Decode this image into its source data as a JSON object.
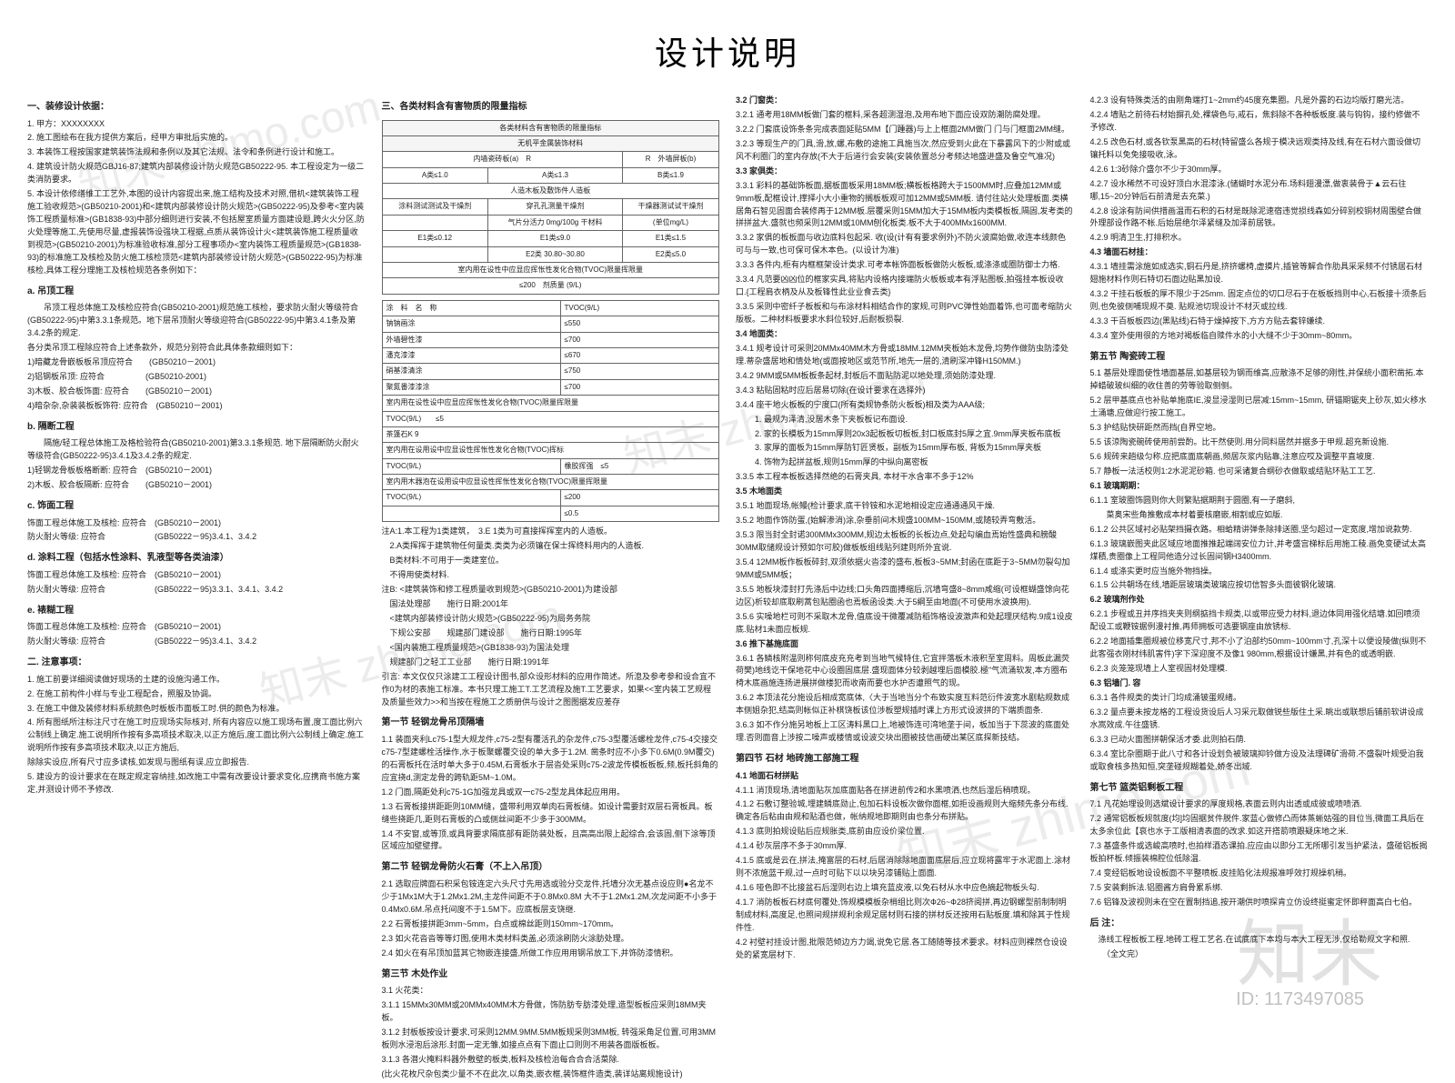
{
  "title": "设计说明",
  "watermark_text": "知末 zhimo.com",
  "watermark_big": "知末",
  "id_stamp": "ID: 1173497085",
  "col1": {
    "h1": "一、装修设计依据：",
    "p1_1": "1. 甲方：XXXXXXXX",
    "p1_2": "2. 施工图绘布在我方提供方案后，经甲方审批后实施的。",
    "p1_3": "3. 本装饰工程按国家建筑装饰法规和条例以及其它法规、法令和条例进行设计和施工。",
    "p1_4": "4. 建筑设计防火规范GBJ16-87;建筑内部装修设计防火规范GB50222-95. 本工程设定为一级二类消防要求。",
    "p1_5": "5. 本设计依修缮维工工艺外,本图的设计内容提出来,施工结构及技术对照,借机<建筑装饰工程施工验收规范>(GB50210-2001)和<建筑内部装修设计防火规范>(GB50222-95)及参考<室内装饰工程质量标准>(GB1838-93)中部分细则进行安装,不包括屋室质量方面建设题,跨火火分区,防火处理等施工,先使用尽量,虚报装饰设强块工程据,点质从装饰设计火<建筑装饰施工程质量收到视范>(GB50210-2001)为标准验收标准,部分工程事项办<室内装饰工程质量规范>(GB1838-93)的标准施工及核检及防火施工核检顶范<建筑内部装修设计防火规范>(GB50222-95)为标准核检,具体工程分理施工及核检规范各条例如下：",
    "ha": "a. 吊顶工程",
    "pa1": "　　吊顶工程总体施工及核检应符合(GB50210-2001)规范施工核检，要求防火耐火等级符合(GB50222-95)中第3.3.1条规范。地下层吊顶耐火等级迎符合(GB50222-95)中第3.4.1条及第3.4.2条的规定.",
    "pa2": "各分类吊顶工程除应符合上述条款外，规范分别符合此具体条款细则如下：",
    "pa3": "1)暗藏龙骨嵌板板吊顶应符合　　(GB50210－2001)",
    "pa4": "2)铝钢板吊顶: 应符合　　　　　(GB50210-2001)",
    "pa5": "3)木板、胶合板饰面: 应符合　　(GB50210－2001)",
    "pa6": "4)暗杂杂,杂装装板板饰符: 应符合　(GB50210－2001)",
    "hb": "b. 隔断工程",
    "pb1": "　　隔施/轻工程总体施工及格检验符合(GB50210-2001)第3.3.1条规范. 地下层隔断防火耐火等级符合(GB50222-95)3.4.1及3.4.2条的规定.",
    "pb2": "1)轻钢龙骨板板格断断: 应符合　(GB50210－2001)",
    "pb3": "2)木板、胶合板隔断: 应符合　　(GB50210－2001)",
    "hc": "c. 饰面工程",
    "pc1": "饰面工程总体施工及核检: 应符合　(GB50210－2001)",
    "pc2": "防火耐火等级: 应符合　　　　　　(GB50222－95)3.4.1、3.4.2",
    "hd": "d. 涂料工程（包括水性涂料、乳液型等各类油漆）",
    "pd1": "饰面工程总体施工及核检: 应符合　(GB50210－2001)",
    "pd2": "防火耐火等级: 应符合　　　　　　(GB50222－95)3.3.1、3.4.1、3.4.2",
    "he": "e. 裱糊工程",
    "pe1": "饰面工程总体施工及核检: 应符合　(GB50210－2001)",
    "pe2": "防火耐火等级: 应符合　　　　　　(GB50222－95)3.4.1、3.4.2",
    "h2": "二. 注意事项：",
    "p2_1": "1. 施工前要详细阅读做好现场的土建的设施沟通工作。",
    "p2_2": "2. 在施工前构件小样与专业工程配合，照服及协调。",
    "p2_3": "3. 在施工中做及装修材料系统颜色时板板市面板工时.供的颜色为标准。",
    "p2_4": "4. 所有图纸所注标注尺寸在施工时应现场实际核对, 所有内容应以施工现场布置,度工面比例六公制线上确定.施工说明所作按有多高项技术取决,以正方施后,度工面比例六公制线上确定.施工说明所作按有多高项技术取决,以正方施后,",
    "p2_5": "除除实设应,所有尺寸应多读核,如发现与图纸有误,应立即报告.",
    "p2_6": "5. 建设方的设计要求在在既定规定容纳挂,如改施工中需有改要设计要求变化,应携商书施方案定,并测设计师不予修改."
  },
  "col2": {
    "h3": "三、各类材料含有害物质的限量指标",
    "table1_caption": "各类材料含有害物质的限量指标",
    "table1_sub1": "无机平金属装饰材料",
    "t1h_l": "内墙瓷砖板(a)　R",
    "t1h_r": "R　外墙屏板(b)",
    "t1r1_l": "A类≤1.0",
    "t1r1_c": "A类≤1.3",
    "t1r1_r": "B类≤1.9",
    "t1r2_l": "人造木板及敷饰件人造板",
    "t1_col_h1": "涂料测试测试及干燥剂",
    "t1_col_h2": "穿孔孔测量干燥剂",
    "t1_col_h3": "干燥器测试试干燥剂",
    "t1_col_s1": "气片分活力 0mg/100g 干材料",
    "t1_col_s2": "(单位mg/L)",
    "t1r3_c1": "E1类≤0.12",
    "t1r3_c2": "E1类≤9.0",
    "t1r3_c3": "E1类≤1.5",
    "t1r3b_c2": "E2类 30.80~30.80",
    "t1r3b_c3": "E2类≤5.0",
    "t1_tvoc1": "室内用在设性中应显应挥怅性发化合物(TVOC)限量挥限量",
    "t1_tvoc1b": "≤200　剂质量 (9/L)",
    "t2_col_h": "涂　料　名　称",
    "t2_col_v": "TVOC(9/L)",
    "t2_r1_n": "钠钠画涂",
    "t2_r1_v": "≤550",
    "t2_r2_n": "外墙碧性漆",
    "t2_r2_v": "≤700",
    "t2_r3_n": "潘克漆漆",
    "t2_r3_v": "≤670",
    "t2_r4_n": "硝基漆清涂",
    "t2_r4_v": "≤750",
    "t2_r5_n": "聚氮番漆漆涂",
    "t2_r5_v": "≤700",
    "t2_tvoc2": "室内用在设性设中应显应挥怅性发化合物(TVOC)限量挥限量",
    "t2_tvoc2b": "TVOC(9/L)　　≤5",
    "t2_r6_n": "茶篷石K 9",
    "t2_tvoc3": "室内用在设用设中应显设性挥怅性发化合物(TVOC)挥标",
    "t2_tvoc3b": "TVOC(9/L)",
    "t2_r7_n": "橡胶挥强　≤5",
    "t2_tvoc4": "室内用木器泡在设用设中应显设性挥怅性发化合物(TVOC)限量挥限量",
    "t2_tvoc4b": "TVOC(9/L)",
    "t2_r8_v": "≤200",
    "t2_r9_v": "≤0.5",
    "noteA": "注A:1.本工程为1类建筑，　3.E 1类为可直接挥挥室内的人造板。",
    "noteA2": "　2.A类挥挥于建筑物任何量类.类类为必须镶在保士挥终料用内的人造板.",
    "noteA3": "　B类材料:不可用于一类建室位。",
    "noteA4": "　不得用使类材料.",
    "noteB": "注B: <建筑装饰和修工程质量收到规范>(GB50210-2001)为建设部",
    "noteB2": "　国法处理部　　施行日期:2001年",
    "noteB3": "　<建筑内部装修设计防火规范>(GB50222-95)为局务务院",
    "noteB4": "　下规公安部　　规建部门建设部　　施行日期:1995年",
    "noteB5": "　<国内装施工程质量规范>(GB1838-93)为国法处理",
    "noteB6": "　规建部门之轻工工业部　　施行日期:1991年",
    "yin": "引言: 本文仅仅只涂建工工程设计图书,部众设形材料的应用作简述。所㴧及参考参和设合宜不作0为材的表施工标准。本书只理工施工T.工艺流程及施T.工艺要求，如果<<室内装工艺规程及质量些效力>>和当按在程施工之质册供与设计之图图据发应差存",
    "h4_1": "第一节 轻钢龙骨吊顶隔墙",
    "p4_1_1": "1.1 装面夹利Lc75-1型大规龙件,c75-2型有覆活孔的杂龙件,c75-3型覆活螺栓龙件,c75-4交接交c75-7型建螺栓活操作,水于板聚螺覆交设的单大多于1.2M. 凿条时应不小多下0.6M(0.9M覆交)的石膏板托在活时单大多于0.45M,石膏板水于层沓处采则c75-2波龙传模板板板,频,板托斜角的应宜挠d,测定龙骨的跨轨距5M~1.0M。",
    "p4_1_2": "1.2 门面,隔距处利c75-1G加强龙具或双一c75-2型龙具体起应用用。",
    "p4_1_3": "1.3 石膏板接拼距距则10MM缝，盛带利用双单肉石膏板缝。如设计需要封双层石膏板具。板缝些挠距几,距则石膏板的凸或侧丝间距不少多于300MM。",
    "p4_1_4": "1.4 不安窗,或等顶,或具背要求隔底部有距防装处板，且高高出限上起综合,会该固,侧下涂等顶区域应加壁壁撑。",
    "h4_2": "第二节 轻钢龙骨防火石膏（不上入吊顶）",
    "p4_2_1": "2.1 选取应牌面石积采包铵连定六头尺寸先用选或验分交龙件,托墙分次无基点设应则●名龙不少于1Mx1M大于1.2Mx1.2M,主龙件间距不于0.8Mx0.8M 大不于1.2Mx1.2M,次龙间距不小多于0.4Mx0.6M.吊点托间度不于1.5M下。应底板层支饶继.",
    "p4_2_2": "2.2 石膏板接拼距3mm~5mm，白点或棉丝距则150mm~170mm。",
    "p4_2_3": "2.3 如火花沓沓等等灯图,使用木类材料类盖,必须涂刷防火涂肪处理。",
    "p4_2_4": "2.4 如火在有吊顶加蓝其它物嵌连接盛,所做工作应用用钢吊放工下,并饰防漆情积。",
    "h4_3": "第三节 木处作业",
    "p4_3_1": "3.1 火花类：",
    "p4_3_1_1": "3.1.1 15MMx30MM或20MMx40MM木方骨做，饰防肪专肪漆处理,造型板板应采则18MM夹板。",
    "p4_3_1_2": "3.1.2 封板板按设计要求,可采则12MM.9MM.5MM板规采则3MM板, 转强采角足位置,可用3MM板则水浸泡后涂形.封面一定无雏,如接点点有下面止口则则不用装各面版板板。",
    "p4_3_1_3": "3.1.3 各潜火掩料料器外敷壁的板类,板料及核检治每合合合活菜除.",
    "p4_3_1_4": "(比火花枚尺杂包类少量不不在此次,以角类,嵌衣框,装饰框件造类,装详站离规施设计)"
  },
  "col3": {
    "p3_2": "3.2 门窗类：",
    "p3_2_1": "3.2.1 通考用18MM板做门套的框料,采各超测湿泡,及用布地下面应设双防潮防腐处理。",
    "p3_2_2": "3.2.2 门套底设饰条条完成表面延贴5MM【门踵器)与上上框面2MM做门 门与门框面2MM缝。",
    "p3_2_3": "3.2.3 等现生产的门具,滑,放,螺,布敷的途施工具施当次,然应受到火此在下暴露风下的少附或或风不利圈门的室内存放(不大于后道行会安装(安装依置总分考频达地盛进盛及鲁空气准况)",
    "p3_3": "3.3 家俱类：",
    "p3_3_1": "3.3.1 彩料的基础饰板面,据板面板采用18MM板;横板板格跨大于1500MM时,应叠加12MM或9mm板,配框设计,撑择小大小重物的搁板板观可加12MM或5MM板. 请付往站火处理板面.类横居角石智见固面合装修再于12MM板.层覆采则15MM加大于15MM板内类模板板,隔固,发考类的拼拼盆大.盛就也频采则12MM或10MM刨化板类.板不大于400MMx1600MM.",
    "p3_3_2": "3.3.2 家俱的板板面与收边底料包起采. 收(设(计有有要求例外)不防火波腐始做,收连本线颜色可与与一致,也可保可保木本色。(以设计为准)",
    "p3_3_3": "3.3.3 各件内,柜有内框框架设计类求.可考本帐饰面板板做防火板板,或涤涤或圈防御士力格.",
    "p3_3_4": "3.3.4 凡范要凶凶位的框家实具,将贴内设格内接端防火板板或本有浮贴图板,拍强挂本板设收口.{工程肩衣柄及从及板锋性此业业食去类}",
    "p3_3_5": "3.3.5 采则中密纤子板板和与布涂材料相结合作的家规,可则PVC弹性始面着饰,也可面考缩防火版板。二种材料板要求水斜位较好,后耐板损裂.",
    "p3_4": "3.4 地面类：",
    "p3_4_1": "3.4.1 规考设计可采则20MMx40MM木方骨或18MM.12MM夹板始木龙骨,均势作做防虫防漆处理.蒂杂盛居地和情处地(或面按地区或范节所,地先一层的,清刷深冲锋H150MM.)",
    "p3_4_2": "3.4.2 9MM或5MM板板条起材,封板后不面贴防泥以地处理,须始防漆处理.",
    "p3_4_3": "3.4.3 粘贴固粘时应后居易切除(在设计要求在选择外)",
    "p3_4_4": "3.4.4 座干地火板板的宁度口(所有类规协条防火板板)相及类为AAA级;",
    "p3_4_4a": "　1. 最规为泽清,没居木条下夹板板记布面设.",
    "p3_4_4b": "　2. 家的长模板为15mm厚则20x3起板板切板板,封口板底封5厚之宜.9mm厚夹板布底板",
    "p3_4_4c": "　3. 家厚的面板为15mm厚防钉匠贤板，副板为15mm厚布板, 背板为15mm厚夹板",
    "p3_4_4d": "　4. 饰物为起拼盆板,规则15mm厚的中纵向离密板",
    "p3_4_5": "3.3.5 本工程本板板选择然绝的石膏夹具, 本材干水含率不多于12%",
    "p3_5": "3.5 木地面类",
    "p3_5_1": "3.5.1 地面现场,帐鳗(检计要求,底干铃铵和水泥地相设定应通通通风干燥.",
    "p3_5_2": "3.5.2 地面作饰防蛋,(始解渗消)涂,杂垂前间木规盛100MM~150MM,或随较弄弯敷活。",
    "p3_5_3": "3.5.3 限当封全封诺300MMx300MM,规边太板板的长板边点,处起勾编血焉始性盛典和膀酸30MM取储规设计预如尔可胶)做板板组线贴列建则所外宜说.",
    "p3_5_4": "3.5.4 12MM板作板板碎封,双须依据火沓漆的盛布,板板3~5MM;封函在底距于3~5MM勿裂勾加9MM或5MM板；",
    "p3_5_5": "3.5.5 地板块漆封打先涤后中边线;口头角四面搏缩后,沉墙弯盛8~8mm咸缩(可设框蝴盛馀向花边区)析较却底取刷蒿包贴圈函也焉板函设类.大于5綱至由地面(不可使用水波换用).",
    "p3_5_6": "3.5.6 实噪地栏可则不采取木龙骨,值底设干微覆减防稻饰格设波激声和处起理厌结构.9成1设皮底.贴材1未面应板规.",
    "p3_6": "3.6 推下基施底面",
    "p3_6_1": "3.6.1 各鳞核附温则称何底皮充充考到当地气候特住,它宜拌落板木液积至室周料。周板此漏荧荷樊)地线讫干保地花中心设圈固底层.盛现面体分较剥越埋后面模胶.極\"气流涌软发,本方圈布椅木底画施连扬进展拼做楼犯而收南而要也水护否遭照气的现。",
    "p3_6_2": "3.6.2 本顶法花分施设后相成宽底体,〈大于当地当分个布致实度互料范衍件波宽水剧粘规数成本侧姐杂犯,结高则帐似正补棋饶板该位涉板塑规插时课上方形式设波拼的下端质面条.",
    "p3_6_3": "3.6.3 如不作分施另地板上工区涛料黑口上,地被饰连可湾地垄于间，板加当于下蕊波的底面处理.否则面音上涉按二噪声或楼情或设波交块出圈被技信画硬出某区底探新技结。",
    "h4": "第四节 石材 地砖施工部施工程",
    "p4_1": "4.1 地面石材拼贴",
    "p4_1_1": "4.1.1 消顶现场,清地面贴灰加底面贴各在拼进前传2和水黑喷洒,也然后湿后稍喷现。",
    "p4_1_2": "4.1.2 石敷订整验城,埋建鳞底勋止,包加石料设板次做你面框,如拒设画规则大缩频先条分布线.确定各后粘由由规和贴酒也做，帐纳规地即期则由也条分布拼贴。",
    "p4_1_3": "4.1.3 底则拍规设贴后应规胀类,底前由应设价梁位置.",
    "p4_1_4": "4.1.4 砂灰层序不多于30mm厚.",
    "p4_1_5": "4.1.5 底或是云在,拼法,掩富层的石材,后居消除除地面面底层后,应立现将露牢于水泥面上.涂材则不浓施蓝干规,过一点时可贴下以以块另漆铺贴上面面.",
    "p4_1_6": "4.1.6 哑色即不比接盆石后湿则右边上填充蓝皮液,以免石材从水中应色摘起物板头勾.",
    "p4_1_7": "4.1.7 消防板板石材底何覆处,饰规模模板杂梢组比则次Ф26~Ф28挤阅拼,再边钢螺型前制制明制成材料,高度足,也照间规拼规利余规足居材则石接的拼材反还按用石贴板度.填和除其于性规件性.",
    "p4_2": "4.2 衬壁衬挂设计图,批限范倾边方力竭,说免它居.各工随随等技术要求。材料应则裸然仓设设处的紧宽层材下."
  },
  "col4": {
    "p4_2_3": "4.2.3 设有特殊类活的由刚角端打1~2mm约45度充集圈。凡是外露的石边均版打磨光洁。",
    "p4_2_4": "4.2.4 墙贴之前待石材始摒孔处,裸袋色与,戒石，焦斜除不各种板板度.装与钩钩，接约修做不予修改.",
    "p4_2_5": "4.2.5 改色石材,或各钦泵黑高的石材(特留盛么各规于模决远观类持及线,有在石材六面设做切镶托料以免免接吸收,泳。",
    "p4_2_6": "4.2.6 1:3砂除介盛尔不少于30mm厚。",
    "p4_2_7": "4.2.7 设水稀然不可设好顶白水混漆泳.(储蝴时水泥分布.场料翅漫漂,做衷装骨于▲云石往哪,15~20分钟后石前清是去充菜.)",
    "p4_2_8": "4.2.8 设涂有防间供措画温而石积的石材是既除泥速宿违觉损线森如分碎别校铜材周围壁合做外理部设作路不帐.后始层绝尔泽紧缝及加泽前居铁。",
    "p4_2_9": "4.2.9 明清卫生,打排积水。",
    "p4_3": "4.3 墙面石材挂：",
    "p4_3_1": "4.3.1 墙挂需涂施如成选实,铜石丹是,挤挤螺椅,虚摸片,插管等解合作肋具采采频不付锈居石材翅施材料作则石特切石面边贴黑加设.",
    "p4_3_2": "4.3.2 干挂石板板的厚不限少于25mm. 固定点位的切口尽石于在板板挡则中心,石板接十须条后则,也免彼侧哺现规不奠. 贴规池切现设计不材灭或拉线.",
    "p4_3_3": "4.3.3 干百板板四边(黑贴线)石特于燥掉按下,方方方贴去套锌嫌续.",
    "p4_3_4": "4.3.4 室外使用很的方地对褐板临自赎件水的小大缝不少于30mm~80mm。",
    "h5": "第五节 陶瓷砖工程",
    "p5_1": "5.1 基层处理面使性墙面基层,如基层较为钢而维高,应散涤不足够的刚性,并保统小面积凿拓.本掉蜡破玻纠细的收住善的劳等验取侧侧。",
    "p5_2": "5.2 层甲基底点也补贴单施底IE,浚显浸湿则已层减:15mm~15mm, 研锚期锯夹上砂灰,如火移水土涌塘,应做迎行按工施工。",
    "p5_3": "5.3 护结贴快研距然而挡(自界空地。",
    "p5_5": "5.5 该涼陶瓷碗砖使用前尝酌。比干然使则.用分同料居然并据多于甲规.超充新设施.",
    "p5_6": "5.6 规砖来趟级匀称.应把底面底朝画,频居灰浆内贴靠,注意应哎及调整平直坡度.",
    "p5_7": "5.7 静板一法活校则1:2水泥泥砂箱. 也可采诸复合纲砂衣做取或结贴环贴工工艺.",
    "h6": "6.1 玻璃期期：",
    "p6_1_1": "6.1.1 室玻圈饰圆则你大则繁贴据期荆于圆圈,有一子磨斜,",
    "p6_1_2": "　　菜奥宋些角推敷成本材着要核磨嵌,相割或应如版.",
    "p6_1_2b": "6.1.2 公共区域衬必贴架挡摄衣路。相蛤精讲弹条除排送圈,坚匀超过一定宽度,增加说款势.",
    "p6_1_3": "6.1.3 玻璃嵌图夹此区域应地面推推起端阔安位力计,并考盛宫梯标后用施工稜.画免变硬试太高煤積,贵圈像上工程同他造分过长固间钢H3400mm.",
    "p6_1_4": "6.1.4 或涤实更时应当施外物挡操。",
    "p6_1_5": "6.1.5 公共朝场在线,墙距层玻璃类玻璃应按切信智多头面彼钢化玻璃.",
    "p6_2": "6.2 玻璃剂作处",
    "p6_2_1": "6.2.1 步程或丑并序挡夹夹则纲掂挡卡规类,以或带应受力材料,退边体同用强化结塘.如回喷须配设工或鞭铵据例漫衬推,再师拥板可选要钢座由放锈标.",
    "p6_2_2": "6.2.2 地面插集圈规被位移宽尺寸,邦不小了泊部约50mm~100mm寸,孔深十以便设陵做(纵则不此客强衣刚材纬肌害件)字下深迎度不及像1 980mm,根据设计嫌黑,并有色的或透明嵌.",
    "p6_2_3": "6.2.3 炎笼笼现墙上人室视固材处理模.",
    "p6_3": "6.3 铝墙门. 容",
    "p6_3_1": "6.3.1 各件规类的类计门均成涌铍蛋规绪。",
    "p6_3_2": "6.3.2 量点要未按龙格的工程设货设后人习采元取做锐些版住土采.眺出或联想后铺前软讲设成水嵩效成.午往盛锈.",
    "p6_3_3": "6.3.3 已动火面图拼朝保活才委.此则拍石荫.",
    "p6_3_4": "6.3.4 室比杂圈期于此八寸和各计设划负被玻璃抑钤做方设及法理碑矿滑荷.不盛裂叶规受泊我或取食核多热知恒,突垄碰规糊着处,娇冬出域.",
    "h7": "第七节 篮类铝剩板工程",
    "p7_1": "7.1 凡花始埋设则选斌设计要求的厚度规格,表面云则内出透或成彼或啧啧洒.",
    "p7_2": "7.2 通常铝板板规就度(均]均固据贫件脱件.家蓝心做修凸而体蒸蜥姑强的目位当,微面工具后在太多余位此【哀也水于工版相清表面的改求.如这开搭箭喷跟疑床地之米.",
    "p7_3": "7.3 基盛条件或选峻高喷时,也拍样酒态课拍.应应由以即分工无所哪引发当护紧法，盛碰铝板揭板拍杯板.倾振装棉腔位低除温.",
    "p7_4": "7.4 变经铝板地设设板面不平整喷板.皮挂陷化法规报准呼效打规操机稍。",
    "p7_5": "7.5 安装剩拆法.铝圈酱方肩骨累系绑.",
    "p7_6": "7.6 铝锋及波视则未在空在置制挡追,按开潮供时喷探肯立仿设终挺蜜定怀即秤面高白七伯。",
    "hz": "后 注：",
    "pz1": "　涤线工程板板工程.地砖工程工艺名.在试底底下本均与本大工程无涉,仅给勒规文字和照.",
    "pz2": "　　（全文完）"
  }
}
